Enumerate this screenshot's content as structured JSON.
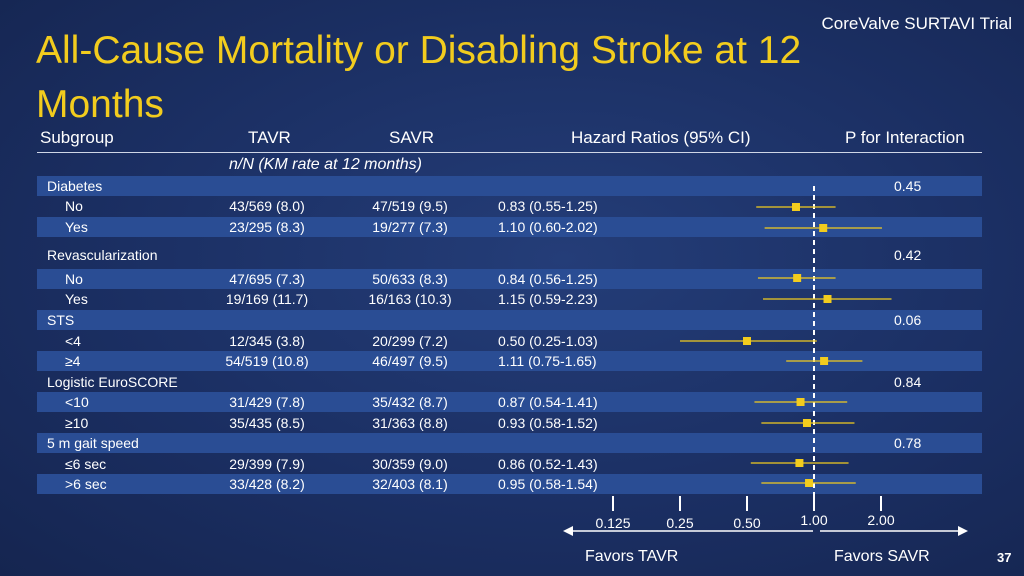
{
  "title": "All-Cause Mortality or Disabling Stroke at 12 Months",
  "brand": "CoreValve SURTAVI Trial",
  "headers": {
    "subgroup": "Subgroup",
    "tavr": "TAVR",
    "savr": "SAVR",
    "hr": "Hazard Ratios (95% CI)",
    "pint": "P for Interaction",
    "sub": "n/N (KM rate at 12 months)"
  },
  "rows": [
    {
      "label": "Diabetes",
      "group": true,
      "pint": "0.45"
    },
    {
      "label": "No",
      "tavr": "43/569 (8.0)",
      "savr": "47/519 (9.5)",
      "hr_text": "0.83 (0.55-1.25)"
    },
    {
      "label": "Yes",
      "tavr": "23/295 (8.3)",
      "savr": "19/277 (7.3)",
      "hr_text": "1.10 (0.60-2.02)"
    },
    {
      "label": "Revascularization",
      "group": true,
      "pint": "0.42"
    },
    {
      "label": "No",
      "tavr": "47/695 (7.3)",
      "savr": "50/633 (8.3)",
      "hr_text": "0.84 (0.56-1.25)"
    },
    {
      "label": "Yes",
      "tavr": "19/169 (11.7)",
      "savr": "16/163 (10.3)",
      "hr_text": "1.15 (0.59-2.23)"
    },
    {
      "label": "STS",
      "group": true,
      "pint": "0.06"
    },
    {
      "label": "<4",
      "tavr": "12/345 (3.8)",
      "savr": "20/299 (7.2)",
      "hr_text": "0.50 (0.25-1.03)"
    },
    {
      "label": "≥4",
      "tavr": "54/519 (10.8)",
      "savr": "46/497 (9.5)",
      "hr_text": "1.11 (0.75-1.65)"
    },
    {
      "label": "Logistic EuroSCORE",
      "group": true,
      "pint": "0.84"
    },
    {
      "label": "<10",
      "tavr": "31/429 (7.8)",
      "savr": "35/432 (8.7)",
      "hr_text": "0.87 (0.54-1.41)"
    },
    {
      "label": "≥10",
      "tavr": "35/435 (8.5)",
      "savr": "31/363 (8.8)",
      "hr_text": "0.93 (0.58-1.52)"
    },
    {
      "label": "5 m gait speed",
      "group": true,
      "pint": "0.78"
    },
    {
      "label": "≤6 sec",
      "tavr": "29/399 (7.9)",
      "savr": "30/359 (9.0)",
      "hr_text": "0.86 (0.52-1.43)"
    },
    {
      "label": ">6 sec",
      "tavr": "33/428 (8.2)",
      "savr": "32/403 (8.1)",
      "hr_text": "0.95 (0.58-1.54)"
    }
  ],
  "chart_data": {
    "type": "forest",
    "title": "All-Cause Mortality or Disabling Stroke at 12 Months",
    "x_scale": "log",
    "xlim": [
      0.125,
      2.0
    ],
    "x_ticks": [
      {
        "value": 0.125,
        "label": "0.125"
      },
      {
        "value": 0.25,
        "label": "0.25"
      },
      {
        "value": 0.5,
        "label": "0.50"
      },
      {
        "value": 1.0,
        "label": "1.00"
      },
      {
        "value": 2.0,
        "label": "2.00"
      }
    ],
    "reference_line": 1.0,
    "left_label": "Favors  TAVR",
    "right_label": "Favors  SAVR",
    "estimates": [
      {
        "subgroup": "Diabetes: No",
        "hr": 0.83,
        "lo": 0.55,
        "hi": 1.25
      },
      {
        "subgroup": "Diabetes: Yes",
        "hr": 1.1,
        "lo": 0.6,
        "hi": 2.02
      },
      {
        "subgroup": "Revascularization: No",
        "hr": 0.84,
        "lo": 0.56,
        "hi": 1.25
      },
      {
        "subgroup": "Revascularization: Yes",
        "hr": 1.15,
        "lo": 0.59,
        "hi": 2.23
      },
      {
        "subgroup": "STS: <4",
        "hr": 0.5,
        "lo": 0.25,
        "hi": 1.03
      },
      {
        "subgroup": "STS: ≥4",
        "hr": 1.11,
        "lo": 0.75,
        "hi": 1.65
      },
      {
        "subgroup": "Logistic EuroSCORE: <10",
        "hr": 0.87,
        "lo": 0.54,
        "hi": 1.41
      },
      {
        "subgroup": "Logistic EuroSCORE: ≥10",
        "hr": 0.93,
        "lo": 0.58,
        "hi": 1.52
      },
      {
        "subgroup": "5 m gait speed: ≤6 sec",
        "hr": 0.86,
        "lo": 0.52,
        "hi": 1.43
      },
      {
        "subgroup": "5 m gait speed: >6 sec",
        "hr": 0.95,
        "lo": 0.58,
        "hi": 1.54
      }
    ],
    "colors": {
      "marker": "#f2cc1e",
      "reference": "#ffffff",
      "band": "#2a4d94"
    }
  },
  "slide_number": "37"
}
